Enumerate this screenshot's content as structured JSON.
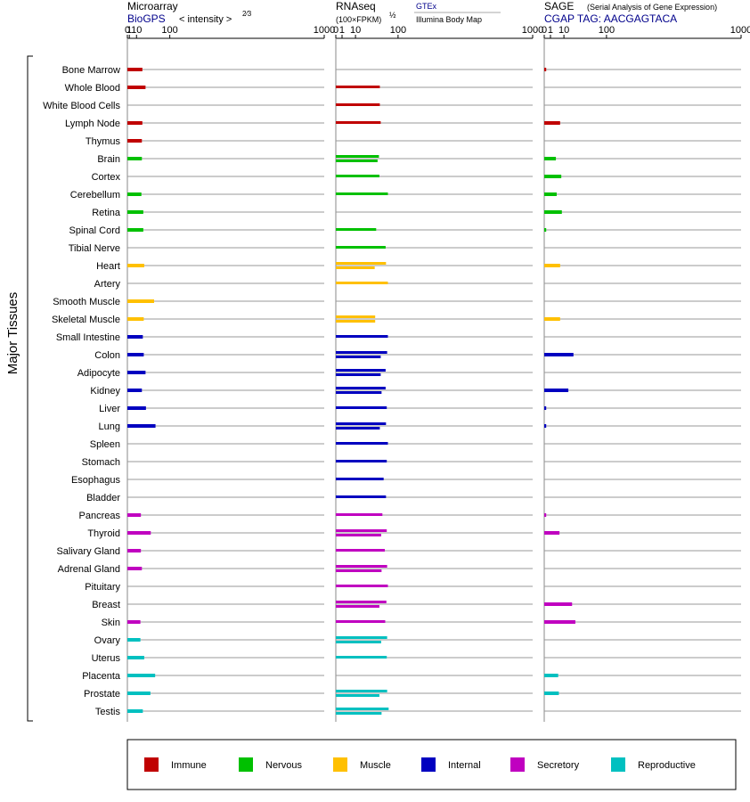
{
  "chart_data": {
    "type": "bar",
    "y_axis_label": "Major Tissues",
    "tissues": [
      "Bone Marrow",
      "Whole Blood",
      "White Blood Cells",
      "Lymph Node",
      "Thymus",
      "Brain",
      "Cortex",
      "Cerebellum",
      "Retina",
      "Spinal Cord",
      "Tibial Nerve",
      "Heart",
      "Artery",
      "Smooth Muscle",
      "Skeletal Muscle",
      "Small Intestine",
      "Colon",
      "Adipocyte",
      "Kidney",
      "Liver",
      "Lung",
      "Spleen",
      "Stomach",
      "Esophagus",
      "Bladder",
      "Pancreas",
      "Thyroid",
      "Salivary Gland",
      "Adrenal Gland",
      "Pituitary",
      "Breast",
      "Skin",
      "Ovary",
      "Uterus",
      "Placenta",
      "Prostate",
      "Testis"
    ],
    "groups": [
      "immune",
      "immune",
      "immune",
      "immune",
      "immune",
      "nervous",
      "nervous",
      "nervous",
      "nervous",
      "nervous",
      "nervous",
      "muscle",
      "muscle",
      "muscle",
      "muscle",
      "internal",
      "internal",
      "internal",
      "internal",
      "internal",
      "internal",
      "internal",
      "internal",
      "internal",
      "internal",
      "secretory",
      "secretory",
      "secretory",
      "secretory",
      "secretory",
      "secretory",
      "secretory",
      "reproductive",
      "reproductive",
      "reproductive",
      "reproductive",
      "reproductive"
    ],
    "colors": {
      "immune": "#c00000",
      "nervous": "#00c000",
      "muscle": "#ffc000",
      "internal": "#0000c0",
      "secretory": "#c000c0",
      "reproductive": "#00c0c0"
    },
    "panels": [
      {
        "title": "Microarray",
        "source": "BioGPS",
        "scale_note": "< intensity >",
        "scale_exp": "2⁄3",
        "scale": "pow2/3",
        "xlim": [
          0,
          1000
        ],
        "ticks": [
          0,
          1,
          10,
          100,
          1000
        ],
        "values": [
          21,
          28,
          null,
          21,
          20,
          20,
          null,
          19,
          23,
          23,
          null,
          25,
          null,
          50,
          24,
          22,
          24,
          28,
          20,
          29,
          54,
          null,
          null,
          null,
          null,
          18,
          41,
          18,
          20,
          null,
          null,
          17,
          17,
          25,
          53,
          40,
          22
        ]
      },
      {
        "title": "RNAseq",
        "source": "GTEx",
        "source2": "Illumina Body Map",
        "scale_note": "(100×FPKM)",
        "scale_exp": "½",
        "scale": "sqrt",
        "xlim": [
          0,
          1000
        ],
        "ticks": [
          0,
          1,
          10,
          100,
          1000
        ],
        "values_gtex": [
          null,
          50,
          50,
          52,
          null,
          48,
          49,
          70,
          null,
          42,
          64,
          65,
          70,
          null,
          40,
          70,
          68,
          64,
          64,
          67,
          65,
          70,
          67,
          59,
          65,
          56,
          67,
          62,
          68,
          70,
          66,
          63,
          68,
          67,
          null,
          68,
          72
        ],
        "values_ibm": [
          null,
          null,
          null,
          null,
          null,
          45,
          null,
          null,
          null,
          null,
          null,
          39,
          null,
          null,
          40,
          null,
          52,
          52,
          54,
          null,
          50,
          null,
          null,
          null,
          null,
          null,
          53,
          null,
          54,
          null,
          49,
          null,
          53,
          null,
          null,
          49,
          54
        ]
      },
      {
        "title": "SAGE",
        "subtitle": "(Serial Analysis of Gene Expression)",
        "source": "CGAP TAG: AACGAGTACA",
        "scale": "sqrt",
        "xlim": [
          0,
          1000
        ],
        "ticks": [
          0,
          1,
          10,
          100,
          1000
        ],
        "values": [
          0.1,
          null,
          null,
          6.5,
          null,
          3.5,
          7.5,
          4,
          8,
          0.1,
          null,
          6.5,
          null,
          null,
          6.5,
          null,
          22,
          null,
          15,
          0.1,
          0.1,
          null,
          null,
          null,
          null,
          0.1,
          6,
          null,
          null,
          null,
          20,
          25,
          null,
          null,
          5,
          5.5,
          null
        ]
      }
    ],
    "legend": [
      {
        "key": "immune",
        "label": "Immune"
      },
      {
        "key": "nervous",
        "label": "Nervous"
      },
      {
        "key": "muscle",
        "label": "Muscle"
      },
      {
        "key": "internal",
        "label": "Internal"
      },
      {
        "key": "secretory",
        "label": "Secretory"
      },
      {
        "key": "reproductive",
        "label": "Reproductive"
      }
    ]
  }
}
